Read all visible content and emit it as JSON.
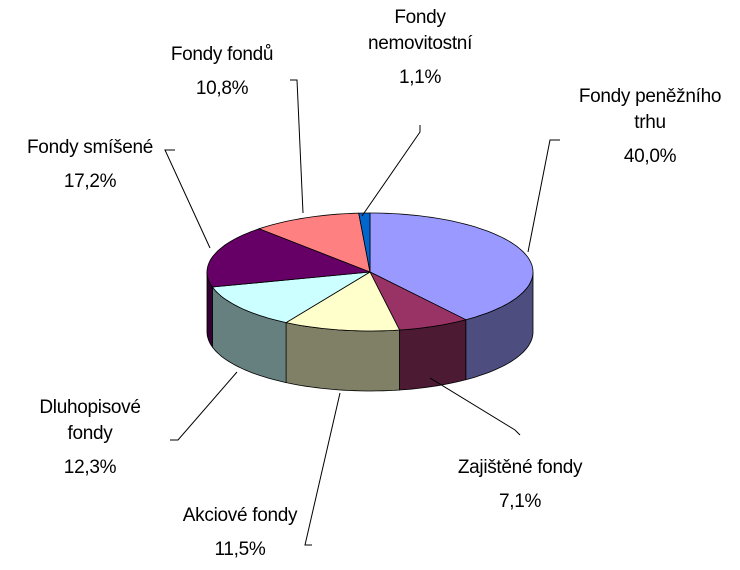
{
  "chart_data": {
    "type": "pie3d",
    "categories": [
      "Fondy peněžního\ntrhu",
      "Zajištěné fondy",
      "Akciové fondy",
      "Dluhopisové\nfondy",
      "Fondy smíšené",
      "Fondy fondů",
      "Fondy\nnemovitostní"
    ],
    "values": [
      40.0,
      7.1,
      11.5,
      12.3,
      17.2,
      10.8,
      1.1
    ],
    "value_labels": [
      "40,0%",
      "7,1%",
      "11,5%",
      "12,3%",
      "17,2%",
      "10,8%",
      "1,1%"
    ],
    "colors": [
      "#9999ff",
      "#993366",
      "#ffffcc",
      "#ccffff",
      "#660066",
      "#ff8080",
      "#0066cc"
    ]
  }
}
